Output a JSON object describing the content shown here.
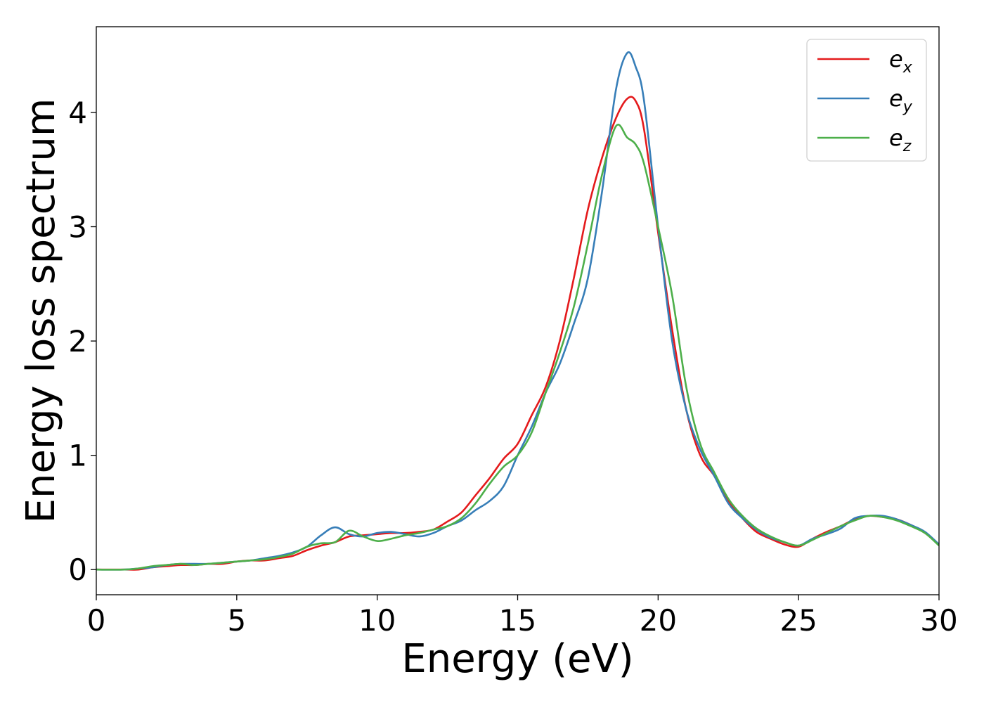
{
  "chart_data": {
    "type": "line",
    "title": "",
    "xlabel": "Energy (eV)",
    "ylabel": "Energy loss spectrum",
    "xlim": [
      0,
      30
    ],
    "ylim": [
      -0.22,
      4.75
    ],
    "xticks": [
      0,
      5,
      10,
      15,
      20,
      25,
      30
    ],
    "yticks": [
      0,
      1,
      2,
      3,
      4
    ],
    "grid": false,
    "legend_position": "top-right",
    "series": [
      {
        "name": "e",
        "subscript": "x",
        "color": "#e41a1c",
        "x": [
          0,
          1,
          1.5,
          2,
          2.5,
          3,
          3.5,
          4,
          4.5,
          5,
          5.5,
          6,
          6.5,
          7,
          7.5,
          8,
          8.5,
          9,
          9.5,
          10,
          10.5,
          11,
          11.5,
          12,
          12.5,
          13,
          13.5,
          14,
          14.5,
          15,
          15.5,
          16,
          16.5,
          17,
          17.5,
          18,
          18.5,
          18.9,
          19.2,
          19.5,
          20,
          20.5,
          21,
          21.5,
          22,
          22.5,
          23,
          23.5,
          24,
          24.5,
          25,
          25.5,
          26,
          26.5,
          27,
          27.5,
          28,
          28.5,
          29,
          29.5,
          30
        ],
        "y": [
          0.0,
          0.0,
          0.0,
          0.02,
          0.03,
          0.04,
          0.04,
          0.05,
          0.05,
          0.07,
          0.08,
          0.08,
          0.1,
          0.12,
          0.17,
          0.21,
          0.24,
          0.29,
          0.3,
          0.31,
          0.32,
          0.32,
          0.33,
          0.35,
          0.42,
          0.5,
          0.65,
          0.8,
          0.97,
          1.1,
          1.35,
          1.6,
          2.0,
          2.55,
          3.15,
          3.6,
          3.95,
          4.12,
          4.1,
          3.85,
          2.95,
          2.1,
          1.4,
          1.0,
          0.82,
          0.6,
          0.45,
          0.33,
          0.27,
          0.22,
          0.2,
          0.27,
          0.33,
          0.38,
          0.44,
          0.47,
          0.46,
          0.44,
          0.39,
          0.32,
          0.22
        ]
      },
      {
        "name": "e",
        "subscript": "y",
        "color": "#377eb8",
        "x": [
          0,
          1,
          1.5,
          2,
          2.5,
          3,
          3.5,
          4,
          4.5,
          5,
          5.5,
          6,
          6.5,
          7,
          7.5,
          8,
          8.5,
          9,
          9.5,
          10,
          10.5,
          11,
          11.5,
          12,
          12.5,
          13,
          13.5,
          14,
          14.5,
          15,
          15.5,
          16,
          16.5,
          17,
          17.5,
          18,
          18.5,
          18.9,
          19.2,
          19.5,
          20,
          20.5,
          21,
          21.5,
          22,
          22.5,
          23,
          23.5,
          24,
          24.5,
          25,
          25.5,
          26,
          26.5,
          27,
          27.5,
          28,
          28.5,
          29,
          29.5,
          30
        ],
        "y": [
          0.0,
          0.0,
          0.01,
          0.02,
          0.04,
          0.05,
          0.05,
          0.05,
          0.06,
          0.07,
          0.08,
          0.1,
          0.12,
          0.15,
          0.2,
          0.3,
          0.37,
          0.31,
          0.29,
          0.32,
          0.33,
          0.31,
          0.29,
          0.32,
          0.38,
          0.43,
          0.52,
          0.6,
          0.73,
          1.0,
          1.25,
          1.55,
          1.8,
          2.15,
          2.55,
          3.3,
          4.2,
          4.52,
          4.4,
          4.1,
          3.0,
          2.0,
          1.4,
          1.05,
          0.82,
          0.58,
          0.45,
          0.35,
          0.28,
          0.24,
          0.21,
          0.27,
          0.31,
          0.36,
          0.45,
          0.47,
          0.47,
          0.44,
          0.39,
          0.33,
          0.22
        ]
      },
      {
        "name": "e",
        "subscript": "z",
        "color": "#4daf4a",
        "x": [
          0,
          1,
          1.5,
          2,
          2.5,
          3,
          3.5,
          4,
          4.5,
          5,
          5.5,
          6,
          6.5,
          7,
          7.5,
          8,
          8.5,
          9,
          9.5,
          10,
          10.5,
          11,
          11.5,
          12,
          12.5,
          13,
          13.5,
          14,
          14.5,
          15,
          15.5,
          16,
          16.5,
          17,
          17.5,
          18,
          18.5,
          18.9,
          19.2,
          19.5,
          20,
          20.5,
          21,
          21.5,
          22,
          22.5,
          23,
          23.5,
          24,
          24.5,
          25,
          25.5,
          26,
          26.5,
          27,
          27.5,
          28,
          28.5,
          29,
          29.5,
          30
        ],
        "y": [
          0.0,
          0.0,
          0.01,
          0.03,
          0.04,
          0.05,
          0.04,
          0.05,
          0.06,
          0.07,
          0.08,
          0.09,
          0.11,
          0.14,
          0.2,
          0.23,
          0.24,
          0.34,
          0.29,
          0.25,
          0.27,
          0.3,
          0.32,
          0.35,
          0.38,
          0.45,
          0.58,
          0.75,
          0.9,
          1.0,
          1.2,
          1.55,
          1.9,
          2.3,
          2.85,
          3.45,
          3.88,
          3.78,
          3.72,
          3.55,
          3.0,
          2.4,
          1.6,
          1.1,
          0.85,
          0.62,
          0.47,
          0.36,
          0.29,
          0.24,
          0.21,
          0.26,
          0.32,
          0.38,
          0.43,
          0.47,
          0.46,
          0.43,
          0.38,
          0.32,
          0.21
        ]
      }
    ]
  }
}
